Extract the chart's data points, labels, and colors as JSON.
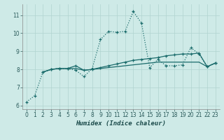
{
  "title": "",
  "xlabel": "Humidex (Indice chaleur)",
  "xlim": [
    -0.5,
    23.5
  ],
  "ylim": [
    5.8,
    11.6
  ],
  "yticks": [
    6,
    7,
    8,
    9,
    10,
    11
  ],
  "xticks": [
    0,
    1,
    2,
    3,
    4,
    5,
    6,
    7,
    8,
    9,
    10,
    11,
    12,
    13,
    14,
    15,
    16,
    17,
    18,
    19,
    20,
    21,
    22,
    23
  ],
  "bg_color": "#ceeae7",
  "grid_color": "#b0d4d0",
  "line_color": "#1a6b6b",
  "line1_x": [
    0,
    1,
    2,
    3,
    4,
    5,
    6,
    7,
    8,
    9,
    10,
    11,
    12,
    13,
    14,
    15,
    16,
    17,
    18,
    19,
    20,
    21,
    22,
    23
  ],
  "line1_y": [
    6.2,
    6.55,
    7.85,
    8.0,
    8.05,
    8.05,
    7.95,
    7.6,
    8.05,
    9.65,
    10.1,
    10.05,
    10.1,
    11.2,
    10.55,
    8.1,
    8.55,
    8.2,
    8.2,
    8.25,
    9.2,
    8.85,
    8.15,
    8.35
  ],
  "line2_x": [
    2,
    3,
    4,
    5,
    6,
    7,
    8,
    9,
    10,
    11,
    12,
    13,
    14,
    15,
    16,
    17,
    18,
    19,
    20,
    21,
    22,
    23
  ],
  "line2_y": [
    7.85,
    8.0,
    8.05,
    8.05,
    8.2,
    7.95,
    8.0,
    8.1,
    8.2,
    8.3,
    8.4,
    8.5,
    8.55,
    8.6,
    8.65,
    8.75,
    8.8,
    8.85,
    8.85,
    8.9,
    8.15,
    8.35
  ],
  "line3_x": [
    2,
    3,
    4,
    5,
    6,
    7,
    8,
    9,
    10,
    11,
    12,
    13,
    14,
    15,
    16,
    17,
    18,
    19,
    20,
    21,
    22,
    23
  ],
  "line3_y": [
    7.85,
    8.0,
    8.05,
    8.05,
    8.05,
    7.95,
    8.0,
    8.05,
    8.1,
    8.15,
    8.2,
    8.25,
    8.3,
    8.35,
    8.4,
    8.4,
    8.4,
    8.4,
    8.4,
    8.4,
    8.15,
    8.35
  ]
}
